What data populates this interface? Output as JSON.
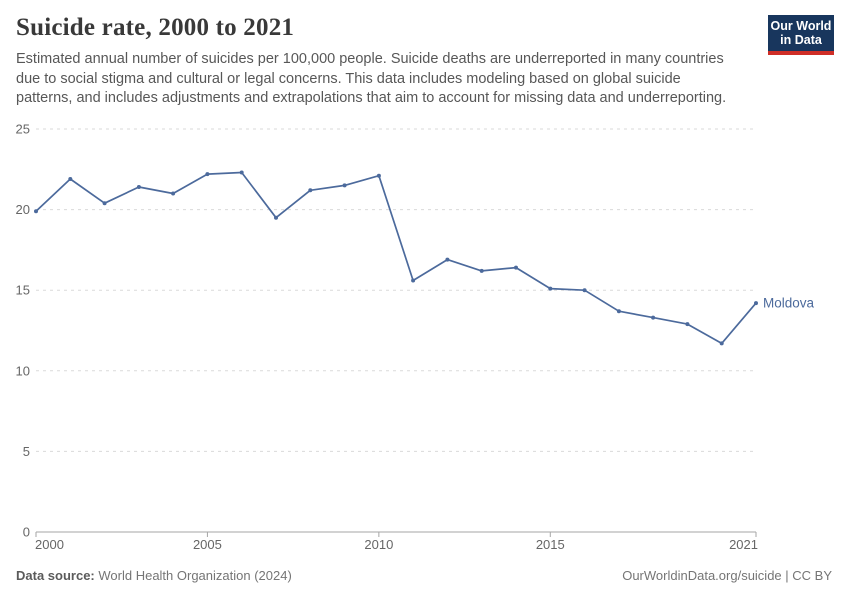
{
  "header": {
    "title": "Suicide rate, 2000 to 2021",
    "subtitle_lines": [
      "Estimated annual number of suicides per 100,000 people. Suicide deaths are underreported in many countries",
      "due to social stigma and cultural or legal concerns. This data includes modeling based on global suicide",
      "patterns, and includes adjustments and extrapolations that aim to account for missing data and underreporting."
    ]
  },
  "logo": {
    "line1": "Our World",
    "line2": "in Data"
  },
  "chart_data": {
    "type": "line",
    "title": "Suicide rate, 2000 to 2021",
    "x": [
      2000,
      2001,
      2002,
      2003,
      2004,
      2005,
      2006,
      2007,
      2008,
      2009,
      2010,
      2011,
      2012,
      2013,
      2014,
      2015,
      2016,
      2017,
      2018,
      2019,
      2020,
      2021
    ],
    "series": [
      {
        "name": "Moldova",
        "color": "#4c6a9c",
        "values": [
          19.9,
          21.9,
          20.4,
          21.4,
          21.0,
          22.2,
          22.3,
          19.5,
          21.2,
          21.5,
          22.1,
          15.6,
          16.9,
          16.2,
          16.4,
          15.1,
          15.0,
          13.7,
          13.3,
          12.9,
          11.7,
          14.2
        ]
      }
    ],
    "xlabel": "",
    "ylabel": "",
    "ylim": [
      0,
      25
    ],
    "yticks": [
      0,
      5,
      10,
      15,
      20,
      25
    ],
    "xticks": [
      2000,
      2005,
      2010,
      2015,
      2021
    ],
    "grid": "horizontal-dashed",
    "legend": "line-end-label"
  },
  "footer": {
    "source_label": "Data source:",
    "source_text": "World Health Organization (2024)",
    "credit": "OurWorldinData.org/suicide | CC BY"
  },
  "colors": {
    "background": "#ffffff",
    "line": "#4c6a9c",
    "grid": "#dadada",
    "axis": "#a6a6a6",
    "tick_label": "#666666",
    "title": "#393939",
    "subtitle": "#575757",
    "footer": "#757575",
    "footer_label": "#5b5b5b",
    "logo_bg": "#18365d",
    "logo_accent": "#cf2e27"
  }
}
